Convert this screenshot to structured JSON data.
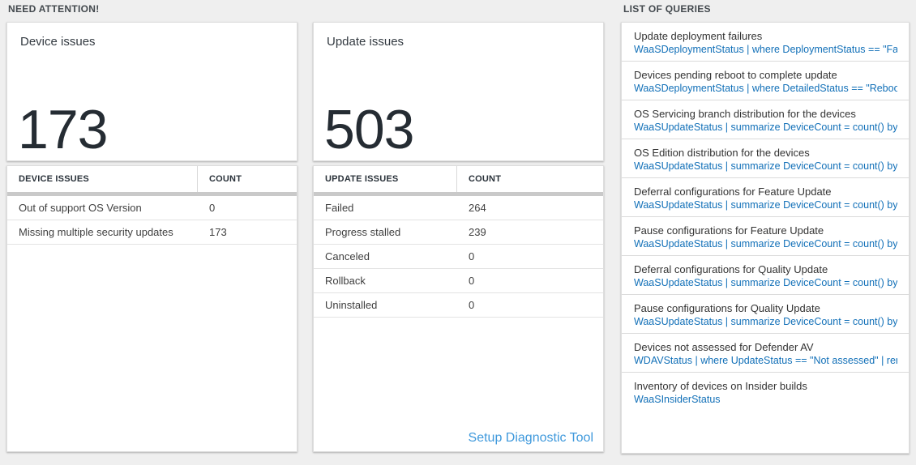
{
  "labels": {
    "need_attention": "NEED ATTENTION!",
    "list_of_queries": "LIST OF QUERIES"
  },
  "device_panel": {
    "title": "Device issues",
    "big_number": "173",
    "table": {
      "headers": {
        "issue": "DEVICE ISSUES",
        "count": "COUNT"
      },
      "rows": [
        {
          "label": "Out of support OS Version",
          "count": "0"
        },
        {
          "label": "Missing multiple security updates",
          "count": "173"
        }
      ]
    }
  },
  "update_panel": {
    "title": "Update issues",
    "big_number": "503",
    "table": {
      "headers": {
        "issue": "UPDATE ISSUES",
        "count": "COUNT"
      },
      "rows": [
        {
          "label": "Failed",
          "count": "264"
        },
        {
          "label": "Progress stalled",
          "count": "239"
        },
        {
          "label": "Canceled",
          "count": "0"
        },
        {
          "label": "Rollback",
          "count": "0"
        },
        {
          "label": "Uninstalled",
          "count": "0"
        }
      ]
    },
    "footer_link": "Setup Diagnostic Tool"
  },
  "queries_panel": {
    "items": [
      {
        "title": "Update deployment failures",
        "query": "WaaSDeploymentStatus | where DeploymentStatus == \"Failed\" |…"
      },
      {
        "title": "Devices pending reboot to complete update",
        "query": "WaaSDeploymentStatus | where DetailedStatus == \"Reboot pend…"
      },
      {
        "title": "OS Servicing branch distribution for the devices",
        "query": "WaaSUpdateStatus | summarize DeviceCount = count() by OSSer…"
      },
      {
        "title": "OS Edition distribution for the devices",
        "query": "WaaSUpdateStatus | summarize DeviceCount = count() by OSEdit…"
      },
      {
        "title": "Deferral configurations for Feature Update",
        "query": "WaaSUpdateStatus | summarize DeviceCount = count() by Featur…"
      },
      {
        "title": "Pause configurations for Feature Update",
        "query": "WaaSUpdateStatus | summarize DeviceCount = count() by Featur…"
      },
      {
        "title": "Deferral configurations for Quality Update",
        "query": "WaaSUpdateStatus | summarize DeviceCount = count() by Qualit…"
      },
      {
        "title": "Pause configurations for Quality Update",
        "query": "WaaSUpdateStatus | summarize DeviceCount = count() by Qualit…"
      },
      {
        "title": "Devices not assessed for Defender AV",
        "query": "WDAVStatus | where UpdateStatus == \"Not assessed\" | render ta…"
      },
      {
        "title": "Inventory of devices on Insider builds",
        "query": "WaaSInsiderStatus"
      }
    ]
  },
  "colors": {
    "page_background": "#efefef",
    "big_number_text": "#252c33",
    "query_link_blue": "#1270b8",
    "setup_link_blue": "#3f99dc",
    "header_bar_gray": "#c9c9c9"
  }
}
